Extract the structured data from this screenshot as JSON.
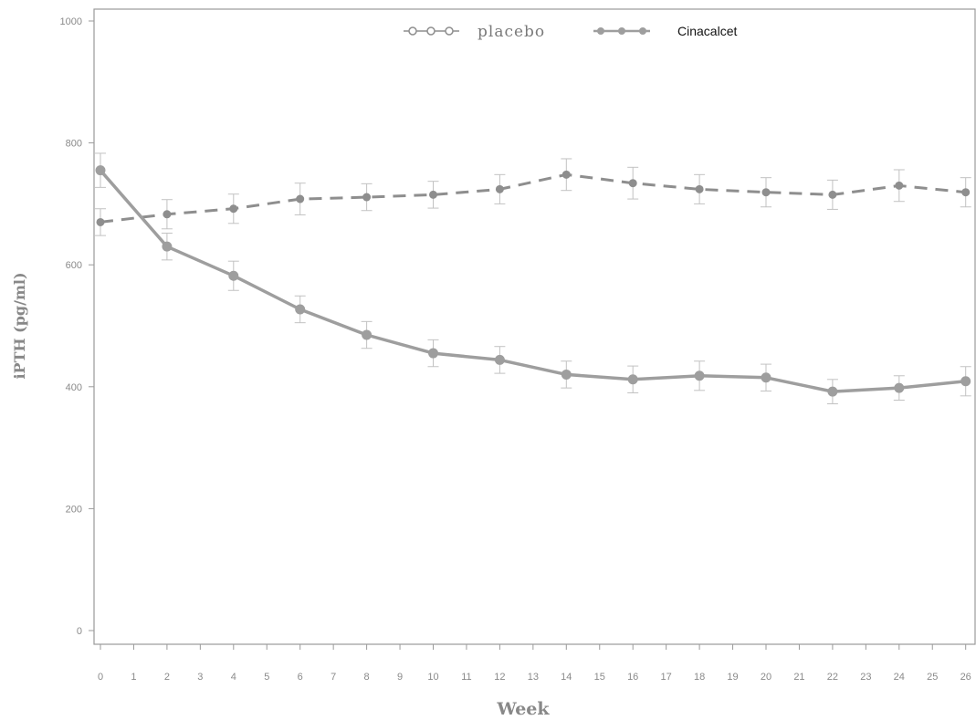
{
  "chart_data": {
    "type": "line",
    "title": "",
    "xlabel": "Week",
    "ylabel": "iPTH (pg/ml)",
    "xlim": [
      0,
      26
    ],
    "ylim": [
      0,
      1000
    ],
    "x_ticks": [
      0,
      1,
      2,
      3,
      4,
      5,
      6,
      7,
      8,
      9,
      10,
      11,
      12,
      13,
      14,
      15,
      16,
      17,
      18,
      19,
      20,
      21,
      22,
      23,
      24,
      25,
      26
    ],
    "y_ticks": [
      0,
      200,
      400,
      600,
      800,
      1000
    ],
    "grid": false,
    "legend_position": "top-center",
    "series": [
      {
        "name": "placebo",
        "style": "dashed, open circle markers",
        "color": "#8e8e8e",
        "x": [
          0,
          2,
          4,
          6,
          8,
          10,
          12,
          14,
          16,
          18,
          20,
          22,
          24,
          26
        ],
        "y": [
          670,
          683,
          692,
          708,
          711,
          715,
          724,
          748,
          734,
          724,
          719,
          715,
          730,
          719
        ],
        "error": [
          22,
          24,
          24,
          26,
          22,
          22,
          24,
          26,
          26,
          24,
          24,
          24,
          26,
          24
        ]
      },
      {
        "name": "Cinacalcet",
        "style": "solid, filled circle markers",
        "color": "#9e9e9e",
        "x": [
          0,
          2,
          4,
          6,
          8,
          10,
          12,
          14,
          16,
          18,
          20,
          22,
          24,
          26
        ],
        "y": [
          755,
          630,
          582,
          527,
          485,
          455,
          444,
          420,
          412,
          418,
          415,
          392,
          398,
          409
        ],
        "error": [
          28,
          22,
          24,
          22,
          22,
          22,
          22,
          22,
          22,
          24,
          22,
          20,
          20,
          24
        ]
      }
    ]
  }
}
